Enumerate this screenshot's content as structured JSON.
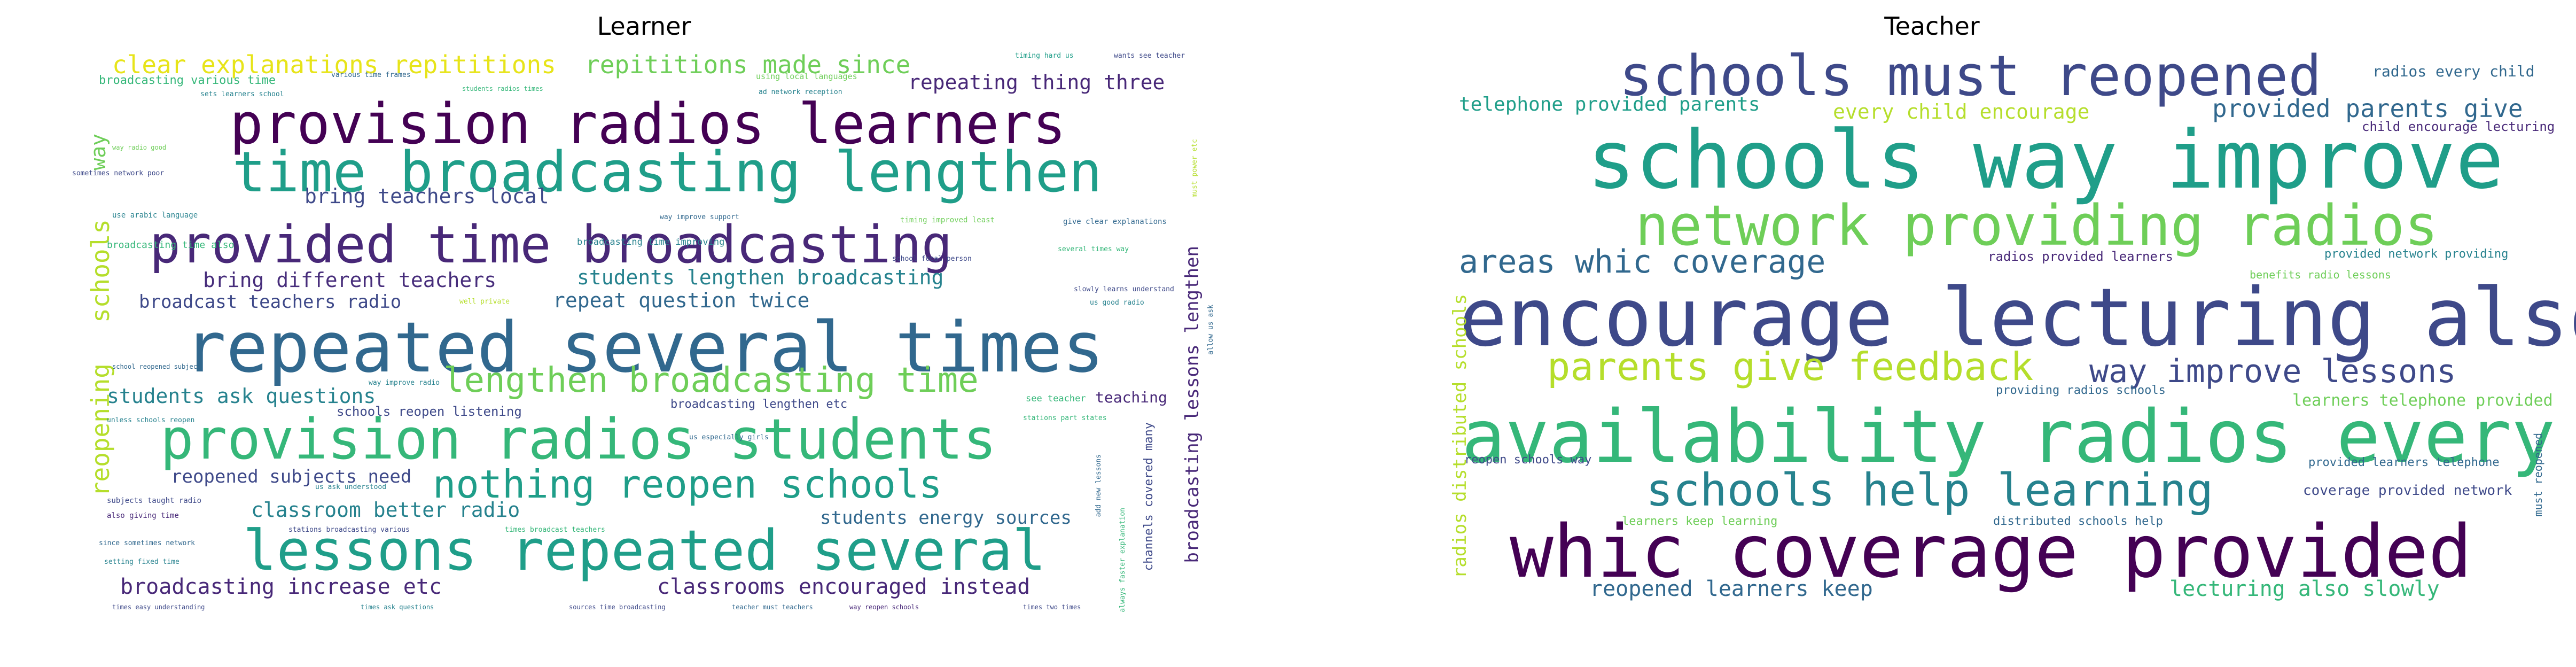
{
  "panels": [
    {
      "title": "Learner",
      "words": [
        {
          "text": "clear explanations repititions",
          "color": "#e7e419"
        },
        {
          "text": "repititions made since",
          "color": "#6ece58"
        },
        {
          "text": "timing hard us",
          "color": "#1f9e89"
        },
        {
          "text": "wants see teacher",
          "color": "#3e4989"
        },
        {
          "text": "broadcasting various time",
          "color": "#35b779"
        },
        {
          "text": "various time frames",
          "color": "#31688e"
        },
        {
          "text": "using local languages",
          "color": "#6ece58"
        },
        {
          "text": "repeating thing three",
          "color": "#482878"
        },
        {
          "text": "sets learners school",
          "color": "#26828e"
        },
        {
          "text": "students radios times",
          "color": "#35b779"
        },
        {
          "text": "ad network reception",
          "color": "#26828e"
        },
        {
          "text": "provision radios learners",
          "color": "#440154"
        },
        {
          "text": "time broadcasting lengthen",
          "color": "#1f9e89"
        },
        {
          "text": "way",
          "color": "#6ece58"
        },
        {
          "text": "schools",
          "color": "#b5de2b"
        },
        {
          "text": "reopening",
          "color": "#b5de2b"
        },
        {
          "text": "provided time broadcasting",
          "color": "#482878"
        },
        {
          "text": "bring teachers local",
          "color": "#3e4989"
        },
        {
          "text": "bring different teachers",
          "color": "#472d7b"
        },
        {
          "text": "students lengthen broadcasting",
          "color": "#26828e"
        },
        {
          "text": "broadcast teachers radio",
          "color": "#3e4989"
        },
        {
          "text": "repeat question twice",
          "color": "#31688e"
        },
        {
          "text": "repeated several times",
          "color": "#31688e"
        },
        {
          "text": "lengthen broadcasting time",
          "color": "#6ece58"
        },
        {
          "text": "students ask questions",
          "color": "#26828e"
        },
        {
          "text": "provision radios students",
          "color": "#35b779"
        },
        {
          "text": "nothing reopen schools",
          "color": "#1f9e89"
        },
        {
          "text": "reopened subjects need",
          "color": "#3e4989"
        },
        {
          "text": "classroom better radio",
          "color": "#26828e"
        },
        {
          "text": "lessons repeated several",
          "color": "#1f9e89"
        },
        {
          "text": "students energy sources",
          "color": "#31688e"
        },
        {
          "text": "broadcasting increase etc",
          "color": "#482878"
        },
        {
          "text": "classrooms encouraged instead",
          "color": "#482878"
        },
        {
          "text": "broadcasting lessons lengthen",
          "color": "#482878"
        },
        {
          "text": "sometimes network poor",
          "color": "#3e4989"
        },
        {
          "text": "way radio good",
          "color": "#6ece58"
        },
        {
          "text": "use arabic language",
          "color": "#26828e"
        },
        {
          "text": "broadcasting time also",
          "color": "#35b779"
        },
        {
          "text": "broadcasting time improving",
          "color": "#26828e"
        },
        {
          "text": "school focal person",
          "color": "#3e4989"
        },
        {
          "text": "give clear explanations",
          "color": "#31688e"
        },
        {
          "text": "way improve support",
          "color": "#31688e"
        },
        {
          "text": "timing improved least",
          "color": "#6ece58"
        },
        {
          "text": "several times way",
          "color": "#35b779"
        },
        {
          "text": "slowly learns understand",
          "color": "#3e4989"
        },
        {
          "text": "us good radio",
          "color": "#26828e"
        },
        {
          "text": "well private",
          "color": "#b5de2b"
        },
        {
          "text": "school reopened subject",
          "color": "#31688e"
        },
        {
          "text": "way improve radio",
          "color": "#26828e"
        },
        {
          "text": "schools reopen listening",
          "color": "#3e4989"
        },
        {
          "text": "broadcasting lengthen etc",
          "color": "#3e4989"
        },
        {
          "text": "see teacher",
          "color": "#35b779"
        },
        {
          "text": "teaching",
          "color": "#482878"
        },
        {
          "text": "unless schools reopen",
          "color": "#26828e"
        },
        {
          "text": "us especially girls",
          "color": "#31688e"
        },
        {
          "text": "stations part states",
          "color": "#35b779"
        },
        {
          "text": "us ask understood",
          "color": "#26828e"
        },
        {
          "text": "subjects taught radio",
          "color": "#3e4989"
        },
        {
          "text": "also giving time",
          "color": "#482878"
        },
        {
          "text": "since sometimes network",
          "color": "#31688e"
        },
        {
          "text": "stations broadcasting various",
          "color": "#3e4989"
        },
        {
          "text": "times broadcast teachers",
          "color": "#35b779"
        },
        {
          "text": "setting fixed time",
          "color": "#26828e"
        },
        {
          "text": "times easy understanding",
          "color": "#3e4989"
        },
        {
          "text": "times ask questions",
          "color": "#26828e"
        },
        {
          "text": "sources time broadcasting",
          "color": "#3e4989"
        },
        {
          "text": "teacher must teachers",
          "color": "#31688e"
        },
        {
          "text": "way reopen schools",
          "color": "#482878"
        },
        {
          "text": "times two times",
          "color": "#3e4989"
        },
        {
          "text": "channels covered many",
          "color": "#3e4989"
        },
        {
          "text": "always faster explanation",
          "color": "#35b779"
        },
        {
          "text": "add new lessons",
          "color": "#31688e"
        },
        {
          "text": "allow us ask",
          "color": "#31688e"
        },
        {
          "text": "must power etc",
          "color": "#b5de2b"
        }
      ]
    },
    {
      "title": "Teacher",
      "words": [
        {
          "text": "schools must reopened",
          "color": "#3e4989"
        },
        {
          "text": "radios every child",
          "color": "#31688e"
        },
        {
          "text": "telephone provided parents",
          "color": "#1f9e89"
        },
        {
          "text": "every child encourage",
          "color": "#b5de2b"
        },
        {
          "text": "provided parents give",
          "color": "#31688e"
        },
        {
          "text": "child encourage lecturing",
          "color": "#482878"
        },
        {
          "text": "schools way improve",
          "color": "#1f9e89"
        },
        {
          "text": "network providing radios",
          "color": "#6ece58"
        },
        {
          "text": "areas whic coverage",
          "color": "#31688e"
        },
        {
          "text": "radios provided learners",
          "color": "#482878"
        },
        {
          "text": "provided network providing",
          "color": "#26828e"
        },
        {
          "text": "benefits radio lessons",
          "color": "#6ece58"
        },
        {
          "text": "encourage lecturing also",
          "color": "#3e4989"
        },
        {
          "text": "radios distributed schools",
          "color": "#b5de2b"
        },
        {
          "text": "parents give feedback",
          "color": "#b5de2b"
        },
        {
          "text": "way improve lessons",
          "color": "#3e4989"
        },
        {
          "text": "providing radios schools",
          "color": "#31688e"
        },
        {
          "text": "learners telephone provided",
          "color": "#6ece58"
        },
        {
          "text": "availability radios every",
          "color": "#35b779"
        },
        {
          "text": "reopen schools way",
          "color": "#3e4989"
        },
        {
          "text": "provided learners telephone",
          "color": "#31688e"
        },
        {
          "text": "must reopened",
          "color": "#31688e"
        },
        {
          "text": "schools help learning",
          "color": "#26828e"
        },
        {
          "text": "coverage provided network",
          "color": "#3e4989"
        },
        {
          "text": "learners keep learning",
          "color": "#6ece58"
        },
        {
          "text": "distributed schools help",
          "color": "#31688e"
        },
        {
          "text": "whic coverage provided",
          "color": "#440154"
        },
        {
          "text": "reopened learners keep",
          "color": "#31688e"
        },
        {
          "text": "lecturing also slowly",
          "color": "#35b779"
        }
      ]
    }
  ]
}
